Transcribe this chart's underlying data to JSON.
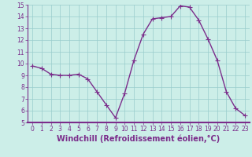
{
  "x": [
    0,
    1,
    2,
    3,
    4,
    5,
    6,
    7,
    8,
    9,
    10,
    11,
    12,
    13,
    14,
    15,
    16,
    17,
    18,
    19,
    20,
    21,
    22,
    23
  ],
  "y": [
    9.8,
    9.6,
    9.1,
    9.0,
    9.0,
    9.1,
    8.7,
    7.6,
    6.5,
    5.4,
    7.5,
    10.3,
    12.5,
    13.8,
    13.9,
    14.0,
    14.9,
    14.8,
    13.7,
    12.1,
    10.3,
    7.6,
    6.2,
    5.6
  ],
  "line_color": "#7b2d8b",
  "marker": "+",
  "marker_size": 4,
  "marker_linewidth": 0.8,
  "background_color": "#cceee8",
  "plot_bg_color": "#cceee8",
  "grid_color": "#99cccc",
  "xlabel": "Windchill (Refroidissement éolien,°C)",
  "xlabel_color": "#7b2d8b",
  "ylim": [
    5,
    15
  ],
  "xlim": [
    -0.5,
    23.5
  ],
  "yticks": [
    5,
    6,
    7,
    8,
    9,
    10,
    11,
    12,
    13,
    14,
    15
  ],
  "xticks": [
    0,
    1,
    2,
    3,
    4,
    5,
    6,
    7,
    8,
    9,
    10,
    11,
    12,
    13,
    14,
    15,
    16,
    17,
    18,
    19,
    20,
    21,
    22,
    23
  ],
  "tick_color": "#7b2d8b",
  "tick_fontsize": 5.5,
  "xlabel_fontsize": 7,
  "linewidth": 1.0,
  "spine_color": "#7b2d8b",
  "bottom_border_color": "#7b2d8b"
}
